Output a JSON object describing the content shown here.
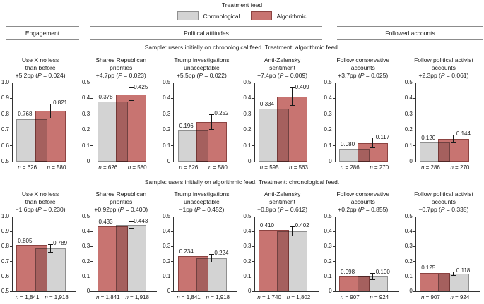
{
  "figure": {
    "legend": {
      "title": "Treatment feed",
      "items": [
        {
          "id": "chronological",
          "label": "Chronological"
        },
        {
          "id": "algorithmic",
          "label": "Algorithmic"
        }
      ]
    },
    "sections": [
      {
        "label": "Engagement"
      },
      {
        "label": "Political attitudes"
      },
      {
        "label": "Followed accounts"
      }
    ]
  },
  "labels": {
    "p": "P",
    "n": "n"
  },
  "colors": {
    "chronological_fill": "#d3d3d3",
    "chronological_border": "#8f8f8f",
    "algorithmic_fill": "#c87471",
    "algorithmic_border": "#8c4341",
    "axis": "#333333",
    "error_bar": "#1a1a1a"
  },
  "chart_data": {
    "type": "bar",
    "legend_position": "top",
    "rows": [
      {
        "header": "Sample: users initially on chronological feed. Treatment: algorithmic feed.",
        "charts": [
          {
            "section": "Engagement",
            "title_lines": [
              "Use X no less",
              "than before"
            ],
            "effect": "+5.2pp",
            "p": "0.024",
            "ymin": 0.5,
            "ymax": 1.0,
            "yticks": [
              "1.0",
              "0.9",
              "0.8",
              "0.7",
              "0.6",
              "0.5"
            ],
            "bars": [
              {
                "group": "chronological",
                "value": 0.768,
                "label": "0.768",
                "n": "626"
              },
              {
                "group": "algorithmic",
                "value": 0.821,
                "label": "0.821",
                "n": "580",
                "ci": 0.045
              }
            ]
          },
          {
            "section": "Political attitudes",
            "title_lines": [
              "Shares Republican",
              "priorities"
            ],
            "effect": "+4.7pp",
            "p": "0.023",
            "ymin": 0,
            "ymax": 0.5,
            "yticks": [
              "0.5",
              "0.4",
              "0.3",
              "0.2",
              "0.1",
              "0"
            ],
            "bars": [
              {
                "group": "chronological",
                "value": 0.378,
                "label": "0.378",
                "n": "626"
              },
              {
                "group": "algorithmic",
                "value": 0.425,
                "label": "0.425",
                "n": "580",
                "ci": 0.041
              }
            ]
          },
          {
            "section": "Political attitudes",
            "title_lines": [
              "Trump investigations",
              "unacceptable"
            ],
            "effect": "+5.5pp",
            "p": "0.022",
            "ymin": 0,
            "ymax": 0.5,
            "yticks": [
              "0.5",
              "0.4",
              "0.3",
              "0.2",
              "0.1",
              "0"
            ],
            "bars": [
              {
                "group": "chronological",
                "value": 0.196,
                "label": "0.196",
                "n": "626"
              },
              {
                "group": "algorithmic",
                "value": 0.252,
                "label": "0.252",
                "n": "580",
                "ci": 0.047
              }
            ]
          },
          {
            "section": "Political attitudes",
            "title_lines": [
              "Anti-Zelensky",
              "sentiment"
            ],
            "effect": "+7.4pp",
            "p": "0.009",
            "ymin": 0,
            "ymax": 0.5,
            "yticks": [
              "0.5",
              "0.4",
              "0.3",
              "0.2",
              "0.1",
              "0"
            ],
            "bars": [
              {
                "group": "chronological",
                "value": 0.334,
                "label": "0.334",
                "n": "595"
              },
              {
                "group": "algorithmic",
                "value": 0.409,
                "label": "0.409",
                "n": "563",
                "ci": 0.056
              }
            ]
          },
          {
            "section": "Followed accounts",
            "title_lines": [
              "Follow conservative",
              "accounts"
            ],
            "effect": "+3.7pp",
            "p": "0.025",
            "ymin": 0,
            "ymax": 0.5,
            "yticks": [
              "0.5",
              "0.4",
              "0.3",
              "0.2",
              "0.1",
              "0"
            ],
            "bars": [
              {
                "group": "chronological",
                "value": 0.08,
                "label": "0.080",
                "n": "286"
              },
              {
                "group": "algorithmic",
                "value": 0.117,
                "label": "0.117",
                "n": "270",
                "ci": 0.032
              }
            ]
          },
          {
            "section": "Followed accounts",
            "title_lines": [
              "Follow political activist",
              "accounts"
            ],
            "effect": "+2.3pp",
            "p": "0.061",
            "ymin": 0,
            "ymax": 0.5,
            "yticks": [
              "0.5",
              "0.4",
              "0.3",
              "0.2",
              "0.1",
              "0"
            ],
            "bars": [
              {
                "group": "chronological",
                "value": 0.12,
                "label": "0.120",
                "n": "286"
              },
              {
                "group": "algorithmic",
                "value": 0.144,
                "label": "0.144",
                "n": "270",
                "ci": 0.024
              }
            ]
          }
        ]
      },
      {
        "header": "Sample: users initially on algorithmic feed. Treatment: chronological feed.",
        "charts": [
          {
            "section": "Engagement",
            "title_lines": [
              "Use X no less",
              "than before"
            ],
            "effect": "−1.6pp",
            "p": "0.230",
            "ymin": 0.5,
            "ymax": 1.0,
            "yticks": [
              "1.0",
              "0.9",
              "0.8",
              "0.7",
              "0.6",
              "0.5"
            ],
            "bars": [
              {
                "group": "algorithmic",
                "value": 0.805,
                "label": "0.805",
                "n": "1,841"
              },
              {
                "group": "chronological",
                "value": 0.789,
                "label": "0.789",
                "n": "1,918",
                "ci": 0.026
              }
            ]
          },
          {
            "section": "Political attitudes",
            "title_lines": [
              "Shares Republican",
              "priorities"
            ],
            "effect": "+0.92pp",
            "p": "0.400",
            "ymin": 0,
            "ymax": 0.5,
            "yticks": [
              "0.5",
              "0.4",
              "0.3",
              "0.2",
              "0.1",
              "0"
            ],
            "bars": [
              {
                "group": "algorithmic",
                "value": 0.433,
                "label": "0.433",
                "n": "1,841"
              },
              {
                "group": "chronological",
                "value": 0.443,
                "label": "0.443",
                "n": "1,918",
                "ci": 0.021
              }
            ]
          },
          {
            "section": "Political attitudes",
            "title_lines": [
              "Trump investigations",
              "unacceptable"
            ],
            "effect": "−1pp",
            "p": "0.452",
            "ymin": 0,
            "ymax": 0.5,
            "yticks": [
              "0.5",
              "0.4",
              "0.3",
              "0.2",
              "0.1",
              "0"
            ],
            "bars": [
              {
                "group": "algorithmic",
                "value": 0.234,
                "label": "0.234",
                "n": "1,841"
              },
              {
                "group": "chronological",
                "value": 0.224,
                "label": "0.224",
                "n": "1,918",
                "ci": 0.026
              }
            ]
          },
          {
            "section": "Political attitudes",
            "title_lines": [
              "Anti-Zelensky",
              "sentiment"
            ],
            "effect": "−0.8pp",
            "p": "0.612",
            "ymin": 0,
            "ymax": 0.5,
            "yticks": [
              "0.5",
              "0.4",
              "0.3",
              "0.2",
              "0.1",
              "0"
            ],
            "bars": [
              {
                "group": "algorithmic",
                "value": 0.41,
                "label": "0.410",
                "n": "1,740"
              },
              {
                "group": "chronological",
                "value": 0.402,
                "label": "0.402",
                "n": "1,802",
                "ci": 0.031
              }
            ]
          },
          {
            "section": "Followed accounts",
            "title_lines": [
              "Follow conservative",
              "accounts"
            ],
            "effect": "+0.2pp",
            "p": "0.855",
            "ymin": 0,
            "ymax": 0.5,
            "yticks": [
              "0.5",
              "0.4",
              "0.3",
              "0.2",
              "0.1",
              "0"
            ],
            "bars": [
              {
                "group": "algorithmic",
                "value": 0.098,
                "label": "0.098",
                "n": "907"
              },
              {
                "group": "chronological",
                "value": 0.1,
                "label": "0.100",
                "n": "924",
                "ci": 0.022
              }
            ]
          },
          {
            "section": "Followed accounts",
            "title_lines": [
              "Follow political activist",
              "accounts"
            ],
            "effect": "−0.7pp",
            "p": "0.335",
            "ymin": 0,
            "ymax": 0.5,
            "yticks": [
              "0.5",
              "0.4",
              "0.3",
              "0.2",
              "0.1",
              "0"
            ],
            "bars": [
              {
                "group": "algorithmic",
                "value": 0.125,
                "label": "0.125",
                "n": "907"
              },
              {
                "group": "chronological",
                "value": 0.118,
                "label": "0.118",
                "n": "924",
                "ci": 0.014
              }
            ]
          }
        ]
      }
    ]
  }
}
